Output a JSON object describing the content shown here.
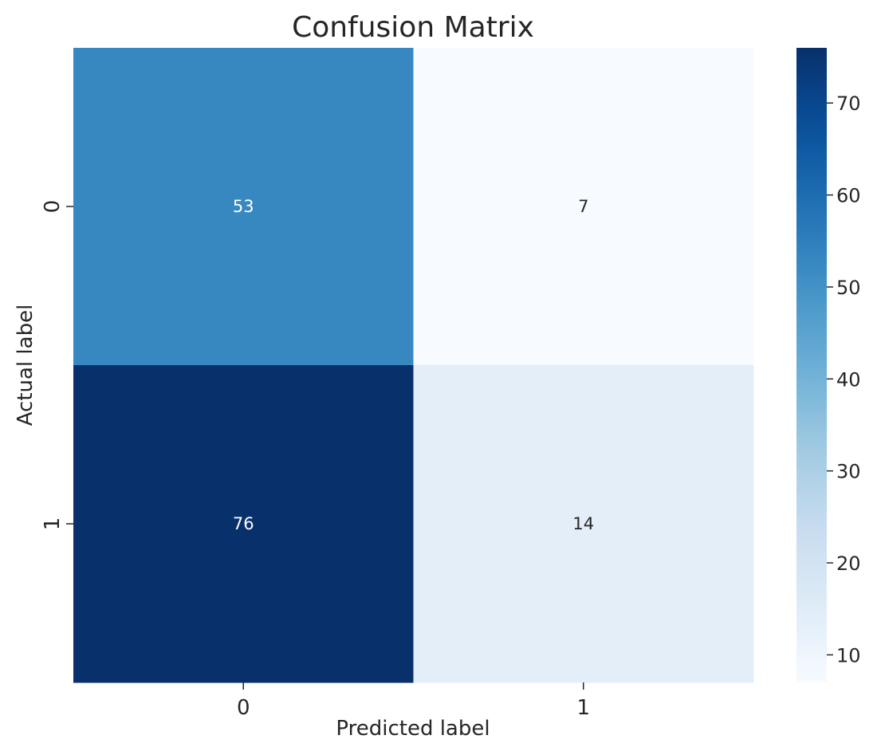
{
  "chart_data": {
    "type": "heatmap",
    "title": "Confusion Matrix",
    "xlabel": "Predicted label",
    "ylabel": "Actual label",
    "x_categories": [
      "0",
      "1"
    ],
    "y_categories": [
      "0",
      "1"
    ],
    "values": [
      [
        53,
        7
      ],
      [
        76,
        14
      ]
    ],
    "annotations": [
      [
        "53",
        "7"
      ],
      [
        "76",
        "14"
      ]
    ],
    "colormap": "Blues",
    "colorbar": {
      "range": [
        7,
        76
      ],
      "ticks": [
        10,
        20,
        30,
        40,
        50,
        60,
        70
      ],
      "tick_labels": [
        "10",
        "20",
        "30",
        "40",
        "50",
        "60",
        "70"
      ]
    },
    "grid": false
  },
  "colors": {
    "background": "#ffffff",
    "text": "#262626",
    "colormap_stops": [
      "#f7fbff",
      "#deebf7",
      "#c6dbef",
      "#9ecae1",
      "#6baed6",
      "#4292c6",
      "#2171b5",
      "#08519c",
      "#08306b"
    ]
  }
}
